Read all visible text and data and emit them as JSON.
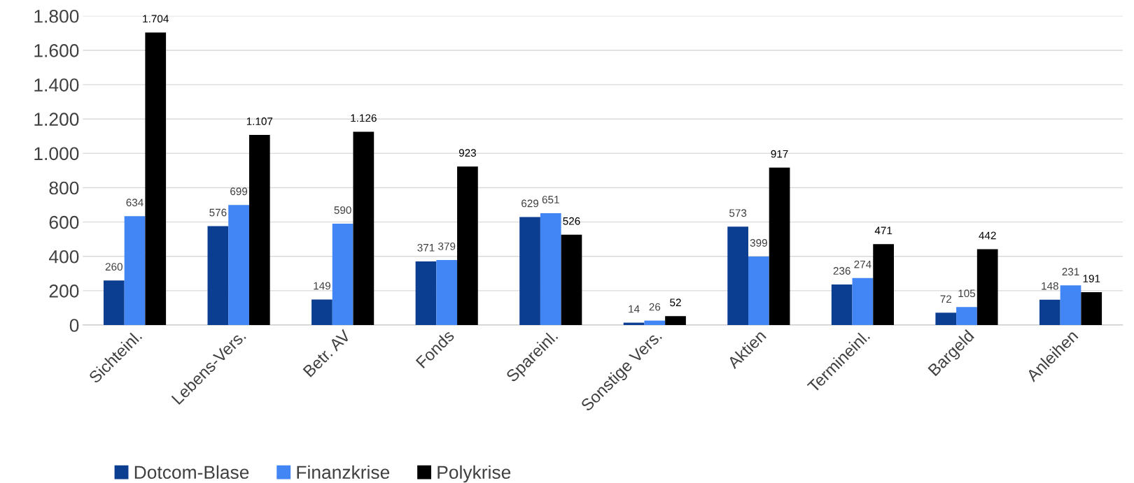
{
  "chart_data": {
    "type": "bar",
    "categories": [
      "Sichteinl.",
      "Lebens-Vers.",
      "Betr. AV",
      "Fonds",
      "Spareinl.",
      "Sonstige Vers.",
      "Aktien",
      "Termineinl.",
      "Bargeld",
      "Anleihen"
    ],
    "series": [
      {
        "name": "Dotcom-Blase",
        "color": "#0b3d91",
        "values": [
          260,
          576,
          149,
          371,
          629,
          14,
          573,
          236,
          72,
          148
        ],
        "value_labels": [
          "260",
          "576",
          "149",
          "371",
          "629",
          "14",
          "573",
          "236",
          "72",
          "148"
        ]
      },
      {
        "name": "Finanzkrise",
        "color": "#4285f4",
        "values": [
          634,
          699,
          590,
          379,
          651,
          26,
          399,
          274,
          105,
          231
        ],
        "value_labels": [
          "634",
          "699",
          "590",
          "379",
          "651",
          "26",
          "399",
          "274",
          "105",
          "231"
        ]
      },
      {
        "name": "Polykrise",
        "color": "#000000",
        "values": [
          1704,
          1107,
          1126,
          923,
          526,
          52,
          917,
          471,
          442,
          191
        ],
        "value_labels": [
          "1.704",
          "1.107",
          "1.126",
          "923",
          "526",
          "52",
          "917",
          "471",
          "442",
          "191"
        ]
      }
    ],
    "ylim": [
      0,
      1800
    ],
    "yticks": [
      0,
      200,
      400,
      600,
      800,
      {
        "value": 1000,
        "label": "1.000"
      },
      {
        "value": 1200,
        "label": "1.200"
      },
      {
        "value": 1400,
        "label": "1.400"
      },
      {
        "value": 1600,
        "label": "1.600"
      },
      {
        "value": 1800,
        "label": "1.800"
      }
    ],
    "grid": "y",
    "legend": "bottom left"
  }
}
